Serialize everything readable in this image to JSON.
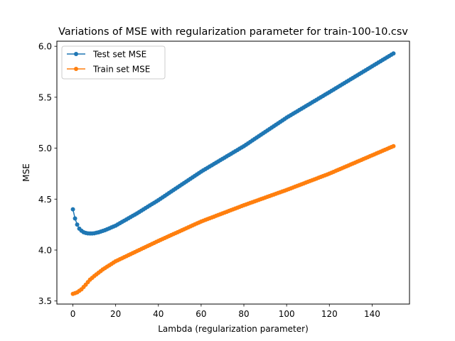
{
  "chart_data": {
    "type": "line",
    "title": "Variations of MSE with regularization parameter for train-100-10.csv",
    "xlabel": "Lambda (regularization parameter)",
    "ylabel": "MSE",
    "xlim": [
      -7.5,
      157.5
    ],
    "ylim": [
      3.47,
      6.05
    ],
    "xticks": [
      0,
      20,
      40,
      60,
      80,
      100,
      120,
      140
    ],
    "yticks": [
      3.5,
      4.0,
      4.5,
      5.0,
      5.5,
      6.0
    ],
    "ytick_labels": [
      "3.5",
      "4.0",
      "4.5",
      "5.0",
      "5.5",
      "6.0"
    ],
    "grid": false,
    "legend_position": "upper-left",
    "x": {
      "start": 0,
      "stop": 150,
      "step": 1
    },
    "series": [
      {
        "name": "Test set MSE",
        "color": "#1f77b4",
        "marker": "circle",
        "keypoints": [
          [
            0,
            4.4
          ],
          [
            1,
            4.31
          ],
          [
            2,
            4.25
          ],
          [
            3,
            4.21
          ],
          [
            4,
            4.19
          ],
          [
            5,
            4.175
          ],
          [
            6,
            4.168
          ],
          [
            7,
            4.164
          ],
          [
            8,
            4.163
          ],
          [
            9,
            4.163
          ],
          [
            10,
            4.165
          ],
          [
            12,
            4.174
          ],
          [
            15,
            4.195
          ],
          [
            20,
            4.24
          ],
          [
            30,
            4.36
          ],
          [
            40,
            4.49
          ],
          [
            60,
            4.77
          ],
          [
            80,
            5.02
          ],
          [
            100,
            5.3
          ],
          [
            120,
            5.55
          ],
          [
            150,
            5.93
          ]
        ]
      },
      {
        "name": "Train set MSE",
        "color": "#ff7f0e",
        "marker": "circle",
        "keypoints": [
          [
            0,
            3.57
          ],
          [
            2,
            3.585
          ],
          [
            4,
            3.615
          ],
          [
            6,
            3.66
          ],
          [
            8,
            3.71
          ],
          [
            10,
            3.745
          ],
          [
            14,
            3.81
          ],
          [
            20,
            3.89
          ],
          [
            30,
            3.99
          ],
          [
            40,
            4.09
          ],
          [
            60,
            4.28
          ],
          [
            80,
            4.44
          ],
          [
            100,
            4.59
          ],
          [
            120,
            4.75
          ],
          [
            150,
            5.02
          ]
        ]
      }
    ]
  }
}
